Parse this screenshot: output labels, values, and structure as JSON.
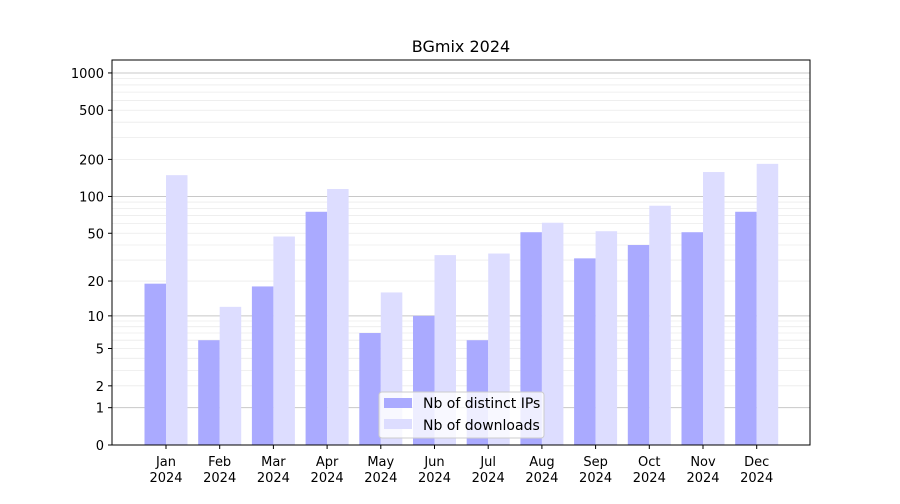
{
  "chart_data": {
    "type": "bar",
    "title": "BGmix 2024",
    "xlabel": "",
    "ylabel": "",
    "yscale": "symlog (log10(1+y))",
    "ylim": [
      0,
      1200
    ],
    "yticks": [
      0,
      1,
      2,
      5,
      10,
      20,
      50,
      100,
      200,
      500,
      1000
    ],
    "grid": true,
    "legend_position": "bottom-center",
    "categories": [
      "Jan\n2024",
      "Feb\n2024",
      "Mar\n2024",
      "Apr\n2024",
      "May\n2024",
      "Jun\n2024",
      "Jul\n2024",
      "Aug\n2024",
      "Sep\n2024",
      "Oct\n2024",
      "Nov\n2024",
      "Dec\n2024"
    ],
    "series": [
      {
        "name": "Nb of distinct IPs",
        "color": "#aaaaff",
        "values": [
          19,
          6,
          18,
          75,
          7,
          10,
          6,
          51,
          31,
          40,
          51,
          75
        ]
      },
      {
        "name": "Nb of downloads",
        "color": "#ddddff",
        "values": [
          149,
          12,
          47,
          115,
          16,
          33,
          34,
          61,
          52,
          84,
          158,
          184
        ]
      }
    ]
  }
}
